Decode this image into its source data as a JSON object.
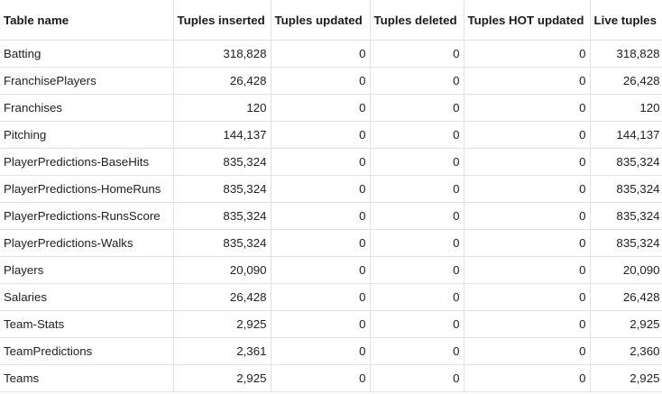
{
  "table": {
    "headers": [
      "Table name",
      "Tuples inserted",
      "Tuples updated",
      "Tuples deleted",
      "Tuples HOT updated",
      "Live tuples"
    ],
    "rows": [
      [
        "Batting",
        "318,828",
        "0",
        "0",
        "0",
        "318,828"
      ],
      [
        "FranchisePlayers",
        "26,428",
        "0",
        "0",
        "0",
        "26,428"
      ],
      [
        "Franchises",
        "120",
        "0",
        "0",
        "0",
        "120"
      ],
      [
        "Pitching",
        "144,137",
        "0",
        "0",
        "0",
        "144,137"
      ],
      [
        "PlayerPredictions-BaseHits",
        "835,324",
        "0",
        "0",
        "0",
        "835,324"
      ],
      [
        "PlayerPredictions-HomeRuns",
        "835,324",
        "0",
        "0",
        "0",
        "835,324"
      ],
      [
        "PlayerPredictions-RunsScore",
        "835,324",
        "0",
        "0",
        "0",
        "835,324"
      ],
      [
        "PlayerPredictions-Walks",
        "835,324",
        "0",
        "0",
        "0",
        "835,324"
      ],
      [
        "Players",
        "20,090",
        "0",
        "0",
        "0",
        "20,090"
      ],
      [
        "Salaries",
        "26,428",
        "0",
        "0",
        "0",
        "26,428"
      ],
      [
        "Team-Stats",
        "2,925",
        "0",
        "0",
        "0",
        "2,925"
      ],
      [
        "TeamPredictions",
        "2,361",
        "0",
        "0",
        "0",
        "2,360"
      ],
      [
        "Teams",
        "2,925",
        "0",
        "0",
        "0",
        "2,925"
      ]
    ]
  }
}
